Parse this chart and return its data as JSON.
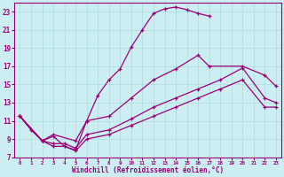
{
  "xlabel": "Windchill (Refroidissement éolien,°C)",
  "bg_color": "#cceef2",
  "grid_color": "#aadddd",
  "line_color": "#990077",
  "xlim": [
    -0.5,
    23.5
  ],
  "ylim": [
    7,
    24
  ],
  "xticks": [
    0,
    1,
    2,
    3,
    4,
    5,
    6,
    7,
    8,
    9,
    10,
    11,
    12,
    13,
    14,
    15,
    16,
    17,
    18,
    19,
    20,
    21,
    22,
    23
  ],
  "yticks": [
    7,
    9,
    11,
    13,
    15,
    17,
    19,
    21,
    23
  ],
  "line1_x": [
    0,
    1,
    2,
    3,
    4,
    5,
    6,
    7,
    8,
    9,
    10,
    11,
    12,
    13,
    14,
    15,
    16,
    17
  ],
  "line1_y": [
    11.5,
    10.0,
    8.8,
    9.3,
    8.2,
    7.8,
    11.0,
    13.8,
    15.5,
    16.7,
    19.1,
    21.0,
    22.8,
    23.3,
    23.5,
    23.2,
    22.8,
    22.5
  ],
  "line2_x": [
    0,
    2,
    3,
    5,
    6,
    8,
    10,
    12,
    14,
    16,
    17,
    20,
    22,
    23
  ],
  "line2_y": [
    11.5,
    8.8,
    9.5,
    8.8,
    11.0,
    11.5,
    13.5,
    15.5,
    16.7,
    18.2,
    17.0,
    17.0,
    16.0,
    14.8
  ],
  "line3_x": [
    0,
    2,
    3,
    4,
    5,
    6,
    8,
    10,
    12,
    14,
    16,
    18,
    20,
    22,
    23
  ],
  "line3_y": [
    11.5,
    8.8,
    8.5,
    8.5,
    8.0,
    9.5,
    10.0,
    11.2,
    12.5,
    13.5,
    14.5,
    15.5,
    16.8,
    13.5,
    13.0
  ],
  "line4_x": [
    0,
    2,
    3,
    4,
    5,
    6,
    8,
    10,
    12,
    14,
    16,
    18,
    20,
    22,
    23
  ],
  "line4_y": [
    11.5,
    8.8,
    8.2,
    8.2,
    7.7,
    9.0,
    9.5,
    10.5,
    11.5,
    12.5,
    13.5,
    14.5,
    15.5,
    12.5,
    12.5
  ]
}
